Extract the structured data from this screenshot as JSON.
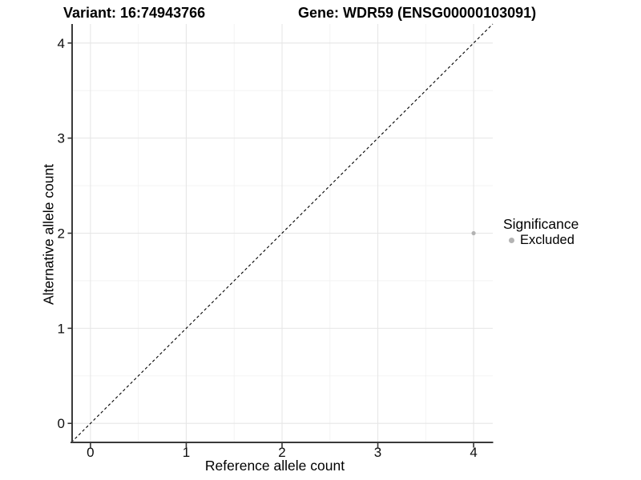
{
  "chart_data": {
    "type": "scatter",
    "titles": {
      "variant": "Variant: 16:74943766",
      "gene": "Gene: WDR59 (ENSG00000103091)"
    },
    "xlabel": "Reference allele count",
    "ylabel": "Alternative allele count",
    "xlim": [
      -0.2,
      4.2
    ],
    "ylim": [
      -0.2,
      4.2
    ],
    "xticks": [
      0,
      1,
      2,
      3,
      4
    ],
    "yticks": [
      0,
      1,
      2,
      3,
      4
    ],
    "xticks_minor": [
      0.5,
      1.5,
      2.5,
      3.5
    ],
    "yticks_minor": [
      0.5,
      1.5,
      2.5,
      3.5
    ],
    "grid": "major+minor",
    "reference_line": {
      "slope": 1,
      "intercept": 0,
      "style": "dashed",
      "color": "#000000"
    },
    "series": [
      {
        "name": "Excluded",
        "color": "#b3b3b3",
        "points": [
          {
            "x": 4,
            "y": 2
          }
        ]
      }
    ],
    "legend": {
      "title": "Significance",
      "position": "right",
      "entries": [
        {
          "label": "Excluded",
          "color": "#b3b3b3"
        }
      ]
    },
    "style": {
      "axis_line_color": "#3a3a3a",
      "tick_color": "#333333",
      "grid_major_color": "#e6e6e6",
      "grid_minor_color": "#f2f2f2",
      "text_color": "#0d0d0d"
    }
  }
}
